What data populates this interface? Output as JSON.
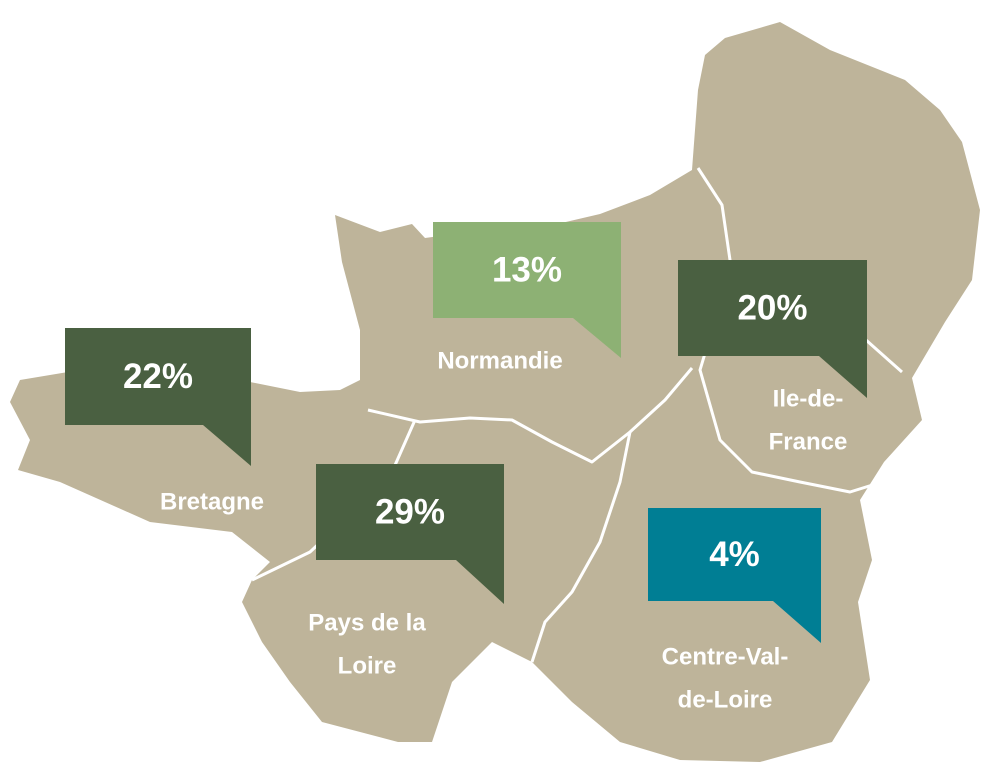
{
  "regions": [
    {
      "lines": [
        "Bretagne"
      ],
      "value": 22,
      "value_label": "22%",
      "color": "#4a6041"
    },
    {
      "lines": [
        "Normandie"
      ],
      "value": 13,
      "value_label": "13%",
      "color": "#8db174"
    },
    {
      "lines": [
        "Ile-de-",
        "France"
      ],
      "value": 20,
      "value_label": "20%",
      "color": "#4a6041"
    },
    {
      "lines": [
        "Pays de la",
        "Loire"
      ],
      "value": 29,
      "value_label": "29%",
      "color": "#4a6041"
    },
    {
      "lines": [
        "Centre-Val-",
        "de-Loire"
      ],
      "value": 4,
      "value_label": "4%",
      "color": "#007e94"
    }
  ]
}
